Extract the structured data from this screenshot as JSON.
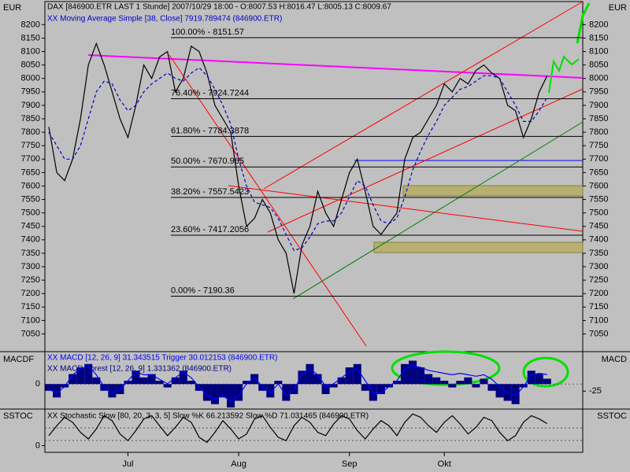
{
  "chart_data": [
    {
      "type": "line",
      "ylabel": "EUR",
      "categories": [
        null,
        null,
        null,
        null,
        null,
        null,
        null,
        null,
        null,
        null,
        "Jul",
        null,
        null,
        null,
        null,
        null,
        null,
        null,
        null,
        null,
        null,
        null,
        null,
        null,
        "Aug",
        null,
        null,
        null,
        null,
        null,
        null,
        null,
        null,
        null,
        null,
        null,
        null,
        null,
        "Sep",
        null,
        null,
        null,
        null,
        null,
        null,
        null,
        null,
        null,
        null,
        null,
        "Okt",
        null,
        null,
        null,
        null,
        null,
        null,
        null,
        null,
        null,
        null,
        null,
        null,
        null,
        null,
        null,
        null,
        null
      ],
      "series": [
        {
          "name": "DAX [846900.ETR LAST 1 Stunde] 2007/10/29 18:00 - O:8007.53 H:8016.47 L:8005.13 C:8009.67",
          "color": "#000000",
          "values": [
            7820,
            7650,
            7620,
            7700,
            7850,
            8050,
            8130,
            8050,
            7950,
            7850,
            7780,
            7900,
            8050,
            8000,
            8080,
            8100,
            7950,
            8000,
            8120,
            8100,
            8020,
            7900,
            7850,
            7800,
            7600,
            7450,
            7480,
            7550,
            7500,
            7400,
            7350,
            7200,
            7380,
            7450,
            7580,
            7500,
            7450,
            7550,
            7650,
            7700,
            7580,
            7450,
            7420,
            7460,
            7500,
            7700,
            7780,
            7800,
            7850,
            7900,
            7980,
            7950,
            8000,
            7980,
            8030,
            8050,
            8020,
            8000,
            7900,
            7880,
            7780,
            7850,
            7950,
            8010,
            null,
            null,
            null,
            null
          ]
        },
        {
          "name": "XX Moving Average Simple [38, Close] 7919.789474 (846900.ETR)",
          "color": "#0000cc",
          "values": [
            7800,
            7750,
            7700,
            7700,
            7750,
            7850,
            7950,
            7990,
            7980,
            7920,
            7880,
            7900,
            7950,
            7980,
            8000,
            8020,
            8000,
            7990,
            8020,
            8040,
            8010,
            7960,
            7900,
            7830,
            7700,
            7600,
            7540,
            7530,
            7520,
            7480,
            7420,
            7360,
            7370,
            7410,
            7460,
            7470,
            7470,
            7500,
            7560,
            7620,
            7600,
            7530,
            7470,
            7460,
            7480,
            7560,
            7660,
            7730,
            7790,
            7840,
            7900,
            7930,
            7960,
            7970,
            7990,
            8010,
            8010,
            8000,
            7950,
            7900,
            7840,
            7840,
            7880,
            7930,
            null,
            null,
            null,
            null
          ]
        }
      ],
      "ylim": [
        6990,
        8280
      ],
      "yticks": [
        7050,
        7100,
        7150,
        7200,
        7250,
        7300,
        7350,
        7400,
        7450,
        7500,
        7550,
        7600,
        7650,
        7700,
        7750,
        7800,
        7850,
        7900,
        7950,
        8000,
        8050,
        8100,
        8150,
        8200
      ],
      "levels": [
        {
          "value": 8151.57,
          "label": "100.00% - 8151.57"
        },
        {
          "value": 7924.7244,
          "label": "76.40% - 7924.7244"
        },
        {
          "value": 7784.3878,
          "label": "61.80% - 7784.3878"
        },
        {
          "value": 7670.965,
          "label": "50.00% - 7670.965"
        },
        {
          "value": 7557.5423,
          "label": "38.20% - 7557.5423"
        },
        {
          "value": 7417.2056,
          "label": "23.60% - 7417.2056"
        },
        {
          "value": 7190.36,
          "label": "0.00% - 7190.36"
        }
      ]
    },
    {
      "type": "macd",
      "ylabel": "MACDF",
      "y2label": "MACD",
      "series": [
        {
          "name": "XX MACD Forest [12, 26, 9] 1.331362 (846900.ETR)",
          "color": "#000080",
          "values": [
            -10,
            -20,
            -5,
            15,
            25,
            30,
            10,
            -10,
            -20,
            -15,
            5,
            20,
            10,
            15,
            5,
            -5,
            10,
            20,
            5,
            -10,
            -25,
            -30,
            -20,
            -35,
            -25,
            5,
            15,
            -10,
            -20,
            5,
            -25,
            -15,
            20,
            30,
            15,
            -15,
            -5,
            10,
            25,
            30,
            -10,
            -25,
            -15,
            -5,
            5,
            30,
            35,
            25,
            15,
            10,
            5,
            -5,
            5,
            10,
            -5,
            8,
            -10,
            -20,
            -25,
            -30,
            -5,
            20,
            15,
            8,
            null,
            null,
            null,
            null
          ]
        },
        {
          "name": "XX MACD [12, 26, 9] 31.343515 Trigger 30.012153 (846900.ETR)",
          "color": "#0000ff",
          "axis": "y2",
          "values": [
            -20,
            -30,
            -10,
            30,
            50,
            60,
            30,
            -10,
            -30,
            -20,
            10,
            40,
            30,
            30,
            15,
            0,
            20,
            40,
            20,
            -10,
            -40,
            -50,
            -40,
            -60,
            -40,
            0,
            20,
            -10,
            -30,
            0,
            -40,
            -20,
            30,
            50,
            30,
            -10,
            0,
            20,
            40,
            50,
            10,
            -30,
            -30,
            -10,
            10,
            50,
            60,
            55,
            45,
            40,
            35,
            30,
            35,
            30,
            25,
            30,
            15,
            -10,
            -30,
            -40,
            -10,
            30,
            35,
            31,
            null,
            null,
            null,
            null
          ]
        }
      ],
      "ylim": [
        -35,
        45
      ],
      "yticks": [
        0
      ],
      "y2lim": [
        -80,
        100
      ],
      "y2ticks": [
        -25
      ]
    },
    {
      "type": "stoch",
      "ylabel": "SSTOC",
      "series": [
        {
          "name": "XX Stochastic Slow [80, 20, 3, 3, 5] Slow %K 66.213592 Slow %D 71.031465 (846900.ETR)",
          "color": "#000000",
          "values": [
            30,
            60,
            85,
            70,
            40,
            20,
            50,
            90,
            75,
            35,
            15,
            45,
            80,
            90,
            60,
            30,
            55,
            85,
            70,
            25,
            10,
            40,
            75,
            50,
            20,
            35,
            80,
            90,
            55,
            25,
            15,
            60,
            85,
            70,
            40,
            30,
            65,
            90,
            80,
            45,
            20,
            50,
            75,
            60,
            30,
            70,
            95,
            85,
            60,
            40,
            70,
            90,
            65,
            35,
            55,
            85,
            75,
            40,
            15,
            30,
            70,
            90,
            80,
            66,
            null,
            null,
            null,
            null
          ]
        }
      ],
      "ylim": [
        -20,
        105
      ],
      "yticks": [
        0
      ]
    }
  ]
}
